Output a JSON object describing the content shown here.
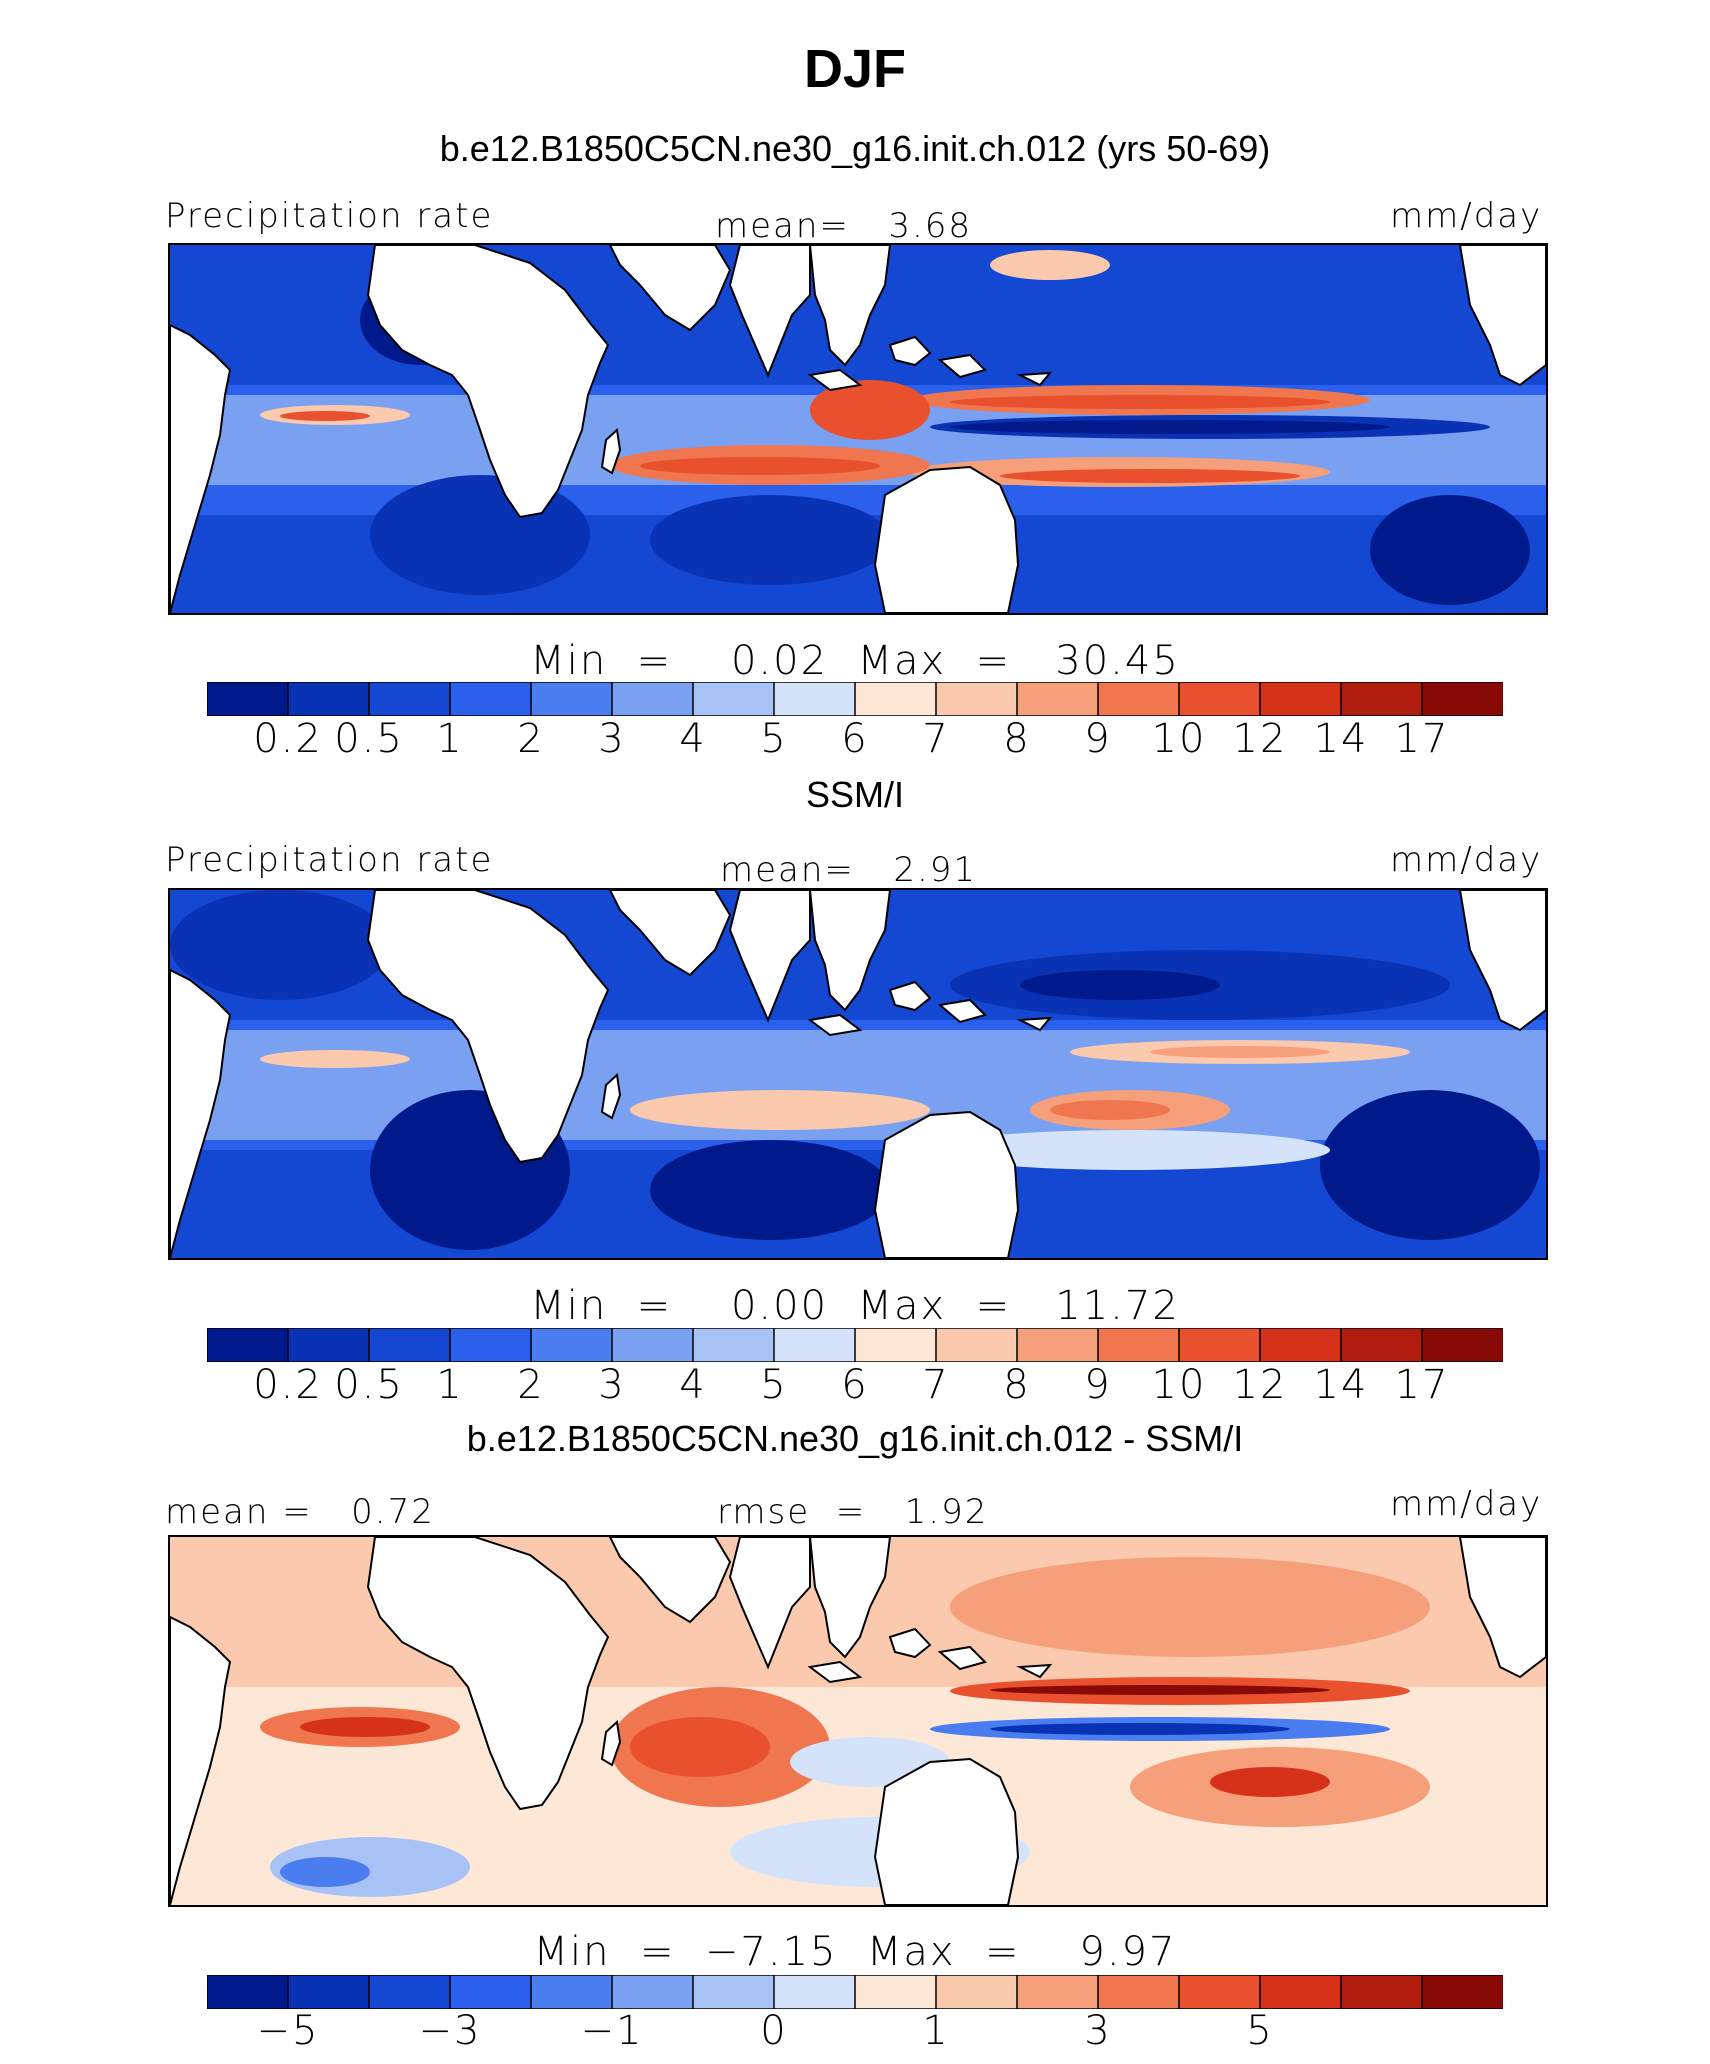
{
  "figure": {
    "season_title": "DJF"
  },
  "colorbar_palette": [
    "#001a8c",
    "#0a32b4",
    "#1448d2",
    "#2a60ec",
    "#4a7ef0",
    "#7aa0f2",
    "#a8c2f6",
    "#d4e2fa",
    "#fde8d8",
    "#fac9ae",
    "#f5a07a",
    "#ef764e",
    "#e8502e",
    "#d6321a",
    "#b01c0e",
    "#880a06"
  ],
  "panels": [
    {
      "id": "model",
      "title": "b.e12.B1850C5CN.ne30_g16.init.ch.012 (yrs 50-69)",
      "left_label": "Precipitation rate",
      "center_label": "mean=   3.68",
      "right_label": "mm/day",
      "stats": "Min  =    0.02  Max  =   30.45",
      "ticks": [
        "0.2",
        "0.5",
        "1",
        "2",
        "3",
        "4",
        "5",
        "6",
        "7",
        "8",
        "9",
        "10",
        "12",
        "14",
        "17"
      ],
      "dominant": "model"
    },
    {
      "id": "obs",
      "title": "SSM/I",
      "left_label": "Precipitation rate",
      "center_label": "mean=   2.91",
      "right_label": "mm/day",
      "stats": "Min  =    0.00  Max  =   11.72",
      "ticks": [
        "0.2",
        "0.5",
        "1",
        "2",
        "3",
        "4",
        "5",
        "6",
        "7",
        "8",
        "9",
        "10",
        "12",
        "14",
        "17"
      ],
      "dominant": "obs"
    },
    {
      "id": "diff",
      "title": "b.e12.B1850C5CN.ne30_g16.init.ch.012 - SSM/I",
      "left_label": "mean =   0.72",
      "center_label": "rmse  =   1.92",
      "right_label": "mm/day",
      "stats": "Min  =  −7.15  Max  =    9.97",
      "ticks": [
        "−5",
        "",
        "−3",
        "",
        "−1",
        "",
        "0",
        "",
        "1",
        "",
        "3",
        "",
        "5"
      ],
      "dominant": "diff"
    }
  ]
}
